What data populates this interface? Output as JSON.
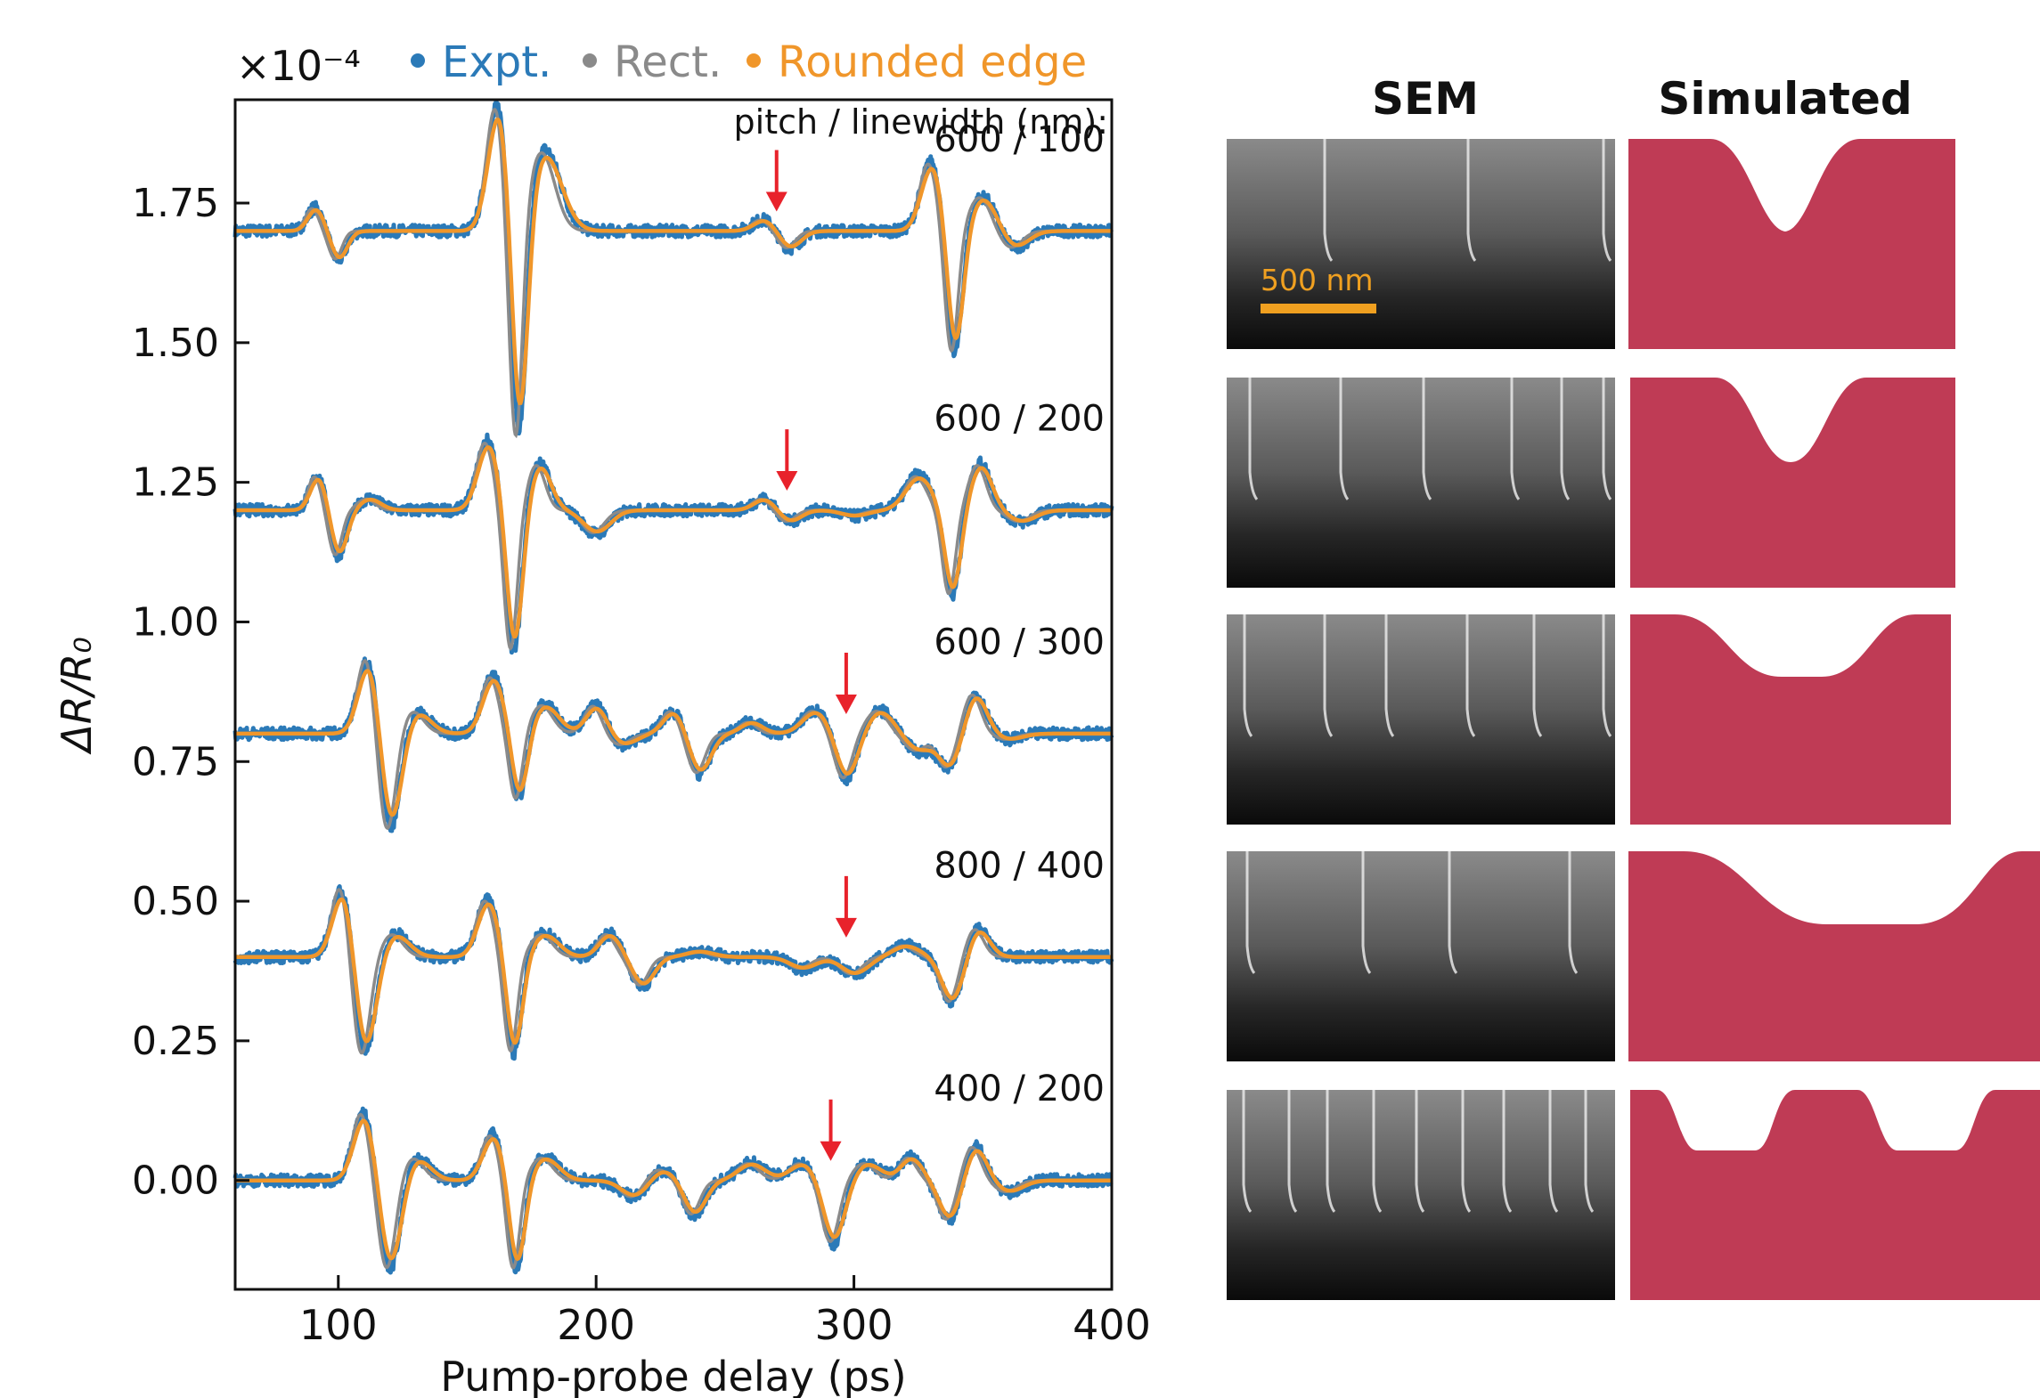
{
  "chart_data": {
    "type": "line",
    "title": "",
    "xlabel": "Pump-probe delay (ps)",
    "ylabel": "ΔR/R₀",
    "y_multiplier": "×10⁻⁴",
    "xlim": [
      60,
      400
    ],
    "ylim": [
      -0.195,
      1.935
    ],
    "x_ticks": [
      100,
      200,
      300,
      400
    ],
    "y_ticks": [
      0.0,
      0.25,
      0.5,
      0.75,
      1.0,
      1.25,
      1.5,
      1.75
    ],
    "y_tick_labels": [
      "0.00",
      "0.25",
      "0.50",
      "0.75",
      "1.00",
      "1.25",
      "1.50",
      "1.75"
    ],
    "grid": false,
    "legend": {
      "placement": "top",
      "entries": [
        {
          "label": "Expt.",
          "color": "#2b7ab8"
        },
        {
          "label": "Rect.",
          "color": "#8a8a8a"
        },
        {
          "label": "Rounded edge",
          "color": "#f0962a"
        }
      ]
    },
    "annotation_header": "pitch / linewidth (nm):",
    "marker_color": "#e8222b",
    "traces": [
      {
        "label": "600 / 100",
        "offset": 1.7,
        "marker_x": 270,
        "features": [
          [
            91,
            0.04,
            3
          ],
          [
            100,
            -0.05,
            3
          ],
          [
            162,
            0.22,
            4
          ],
          [
            170,
            -0.4,
            3
          ],
          [
            180,
            0.14,
            6
          ],
          [
            265,
            0.02,
            4
          ],
          [
            275,
            -0.03,
            4
          ],
          [
            330,
            0.12,
            4
          ],
          [
            339,
            -0.22,
            3
          ],
          [
            350,
            0.06,
            5
          ],
          [
            362,
            -0.03,
            5
          ]
        ]
      },
      {
        "label": "600 / 200",
        "offset": 1.2,
        "marker_x": 274,
        "features": [
          [
            92,
            0.06,
            3
          ],
          [
            100,
            -0.08,
            3
          ],
          [
            112,
            0.02,
            4
          ],
          [
            158,
            0.12,
            4
          ],
          [
            168,
            -0.25,
            3
          ],
          [
            178,
            0.08,
            4
          ],
          [
            200,
            -0.04,
            5
          ],
          [
            265,
            0.02,
            4
          ],
          [
            275,
            -0.02,
            4
          ],
          [
            300,
            -0.01,
            5
          ],
          [
            325,
            0.06,
            5
          ],
          [
            338,
            -0.15,
            3
          ],
          [
            349,
            0.08,
            4
          ],
          [
            365,
            -0.02,
            5
          ]
        ]
      },
      {
        "label": "600 / 300",
        "offset": 0.8,
        "marker_x": 297,
        "features": [
          [
            112,
            0.14,
            4
          ],
          [
            120,
            -0.18,
            4
          ],
          [
            130,
            0.04,
            5
          ],
          [
            160,
            0.1,
            4
          ],
          [
            170,
            -0.12,
            3
          ],
          [
            180,
            0.05,
            5
          ],
          [
            200,
            0.05,
            4
          ],
          [
            210,
            -0.02,
            5
          ],
          [
            230,
            0.04,
            4
          ],
          [
            240,
            -0.07,
            4
          ],
          [
            260,
            0.02,
            4
          ],
          [
            285,
            0.04,
            5
          ],
          [
            297,
            -0.08,
            4
          ],
          [
            310,
            0.04,
            5
          ],
          [
            325,
            -0.03,
            5
          ],
          [
            337,
            -0.06,
            4
          ],
          [
            347,
            0.07,
            4
          ],
          [
            360,
            -0.01,
            5
          ]
        ]
      },
      {
        "label": "800 / 400",
        "offset": 0.4,
        "marker_x": 297,
        "features": [
          [
            102,
            0.13,
            4
          ],
          [
            110,
            -0.18,
            4
          ],
          [
            122,
            0.04,
            5
          ],
          [
            158,
            0.1,
            4
          ],
          [
            168,
            -0.17,
            3
          ],
          [
            180,
            0.04,
            5
          ],
          [
            205,
            0.04,
            4
          ],
          [
            218,
            -0.05,
            4
          ],
          [
            240,
            0.01,
            5
          ],
          [
            280,
            -0.02,
            5
          ],
          [
            300,
            -0.03,
            5
          ],
          [
            320,
            0.02,
            5
          ],
          [
            338,
            -0.08,
            4
          ],
          [
            348,
            0.05,
            4
          ]
        ]
      },
      {
        "label": "400 / 200",
        "offset": 0.0,
        "marker_x": 291,
        "features": [
          [
            110,
            0.12,
            4
          ],
          [
            120,
            -0.16,
            4
          ],
          [
            130,
            0.04,
            5
          ],
          [
            160,
            0.08,
            4
          ],
          [
            169,
            -0.16,
            3
          ],
          [
            180,
            0.04,
            5
          ],
          [
            215,
            -0.03,
            5
          ],
          [
            225,
            0.02,
            5
          ],
          [
            238,
            -0.06,
            4
          ],
          [
            260,
            0.03,
            5
          ],
          [
            280,
            0.03,
            5
          ],
          [
            292,
            -0.11,
            4
          ],
          [
            305,
            0.03,
            5
          ],
          [
            322,
            0.04,
            4
          ],
          [
            337,
            -0.07,
            4
          ],
          [
            347,
            0.06,
            4
          ],
          [
            360,
            -0.02,
            5
          ]
        ]
      }
    ]
  },
  "panel": {
    "sem_header": "SEM",
    "sim_header": "Simulated",
    "scale_bar_label": "500 nm",
    "sim_fill": "#bf3b55",
    "scale_bar_color": "#f0a020"
  }
}
